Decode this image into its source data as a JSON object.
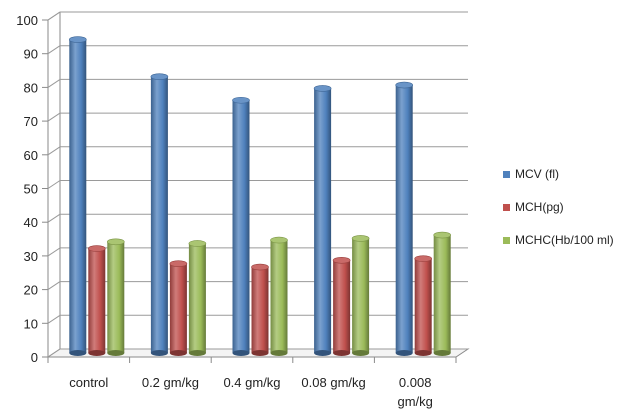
{
  "chart_data": {
    "type": "bar",
    "categories": [
      "control",
      "0.2 gm/kg",
      "0.4 gm/kg",
      "0.08 gm/kg",
      "0.008 gm/kg"
    ],
    "series": [
      {
        "name": "MCV (fl)",
        "color": "#4F81BD",
        "values": [
          93,
          82,
          75,
          78.5,
          79.5
        ]
      },
      {
        "name": "MCH(pg)",
        "color": "#C0504D",
        "values": [
          31,
          26.5,
          25.5,
          27.5,
          28
        ]
      },
      {
        "name": "MCHC(Hb/100 ml)",
        "color": "#9BBB59",
        "values": [
          33,
          32.5,
          33.5,
          34,
          35
        ]
      }
    ],
    "ylim": [
      0,
      100
    ],
    "yticks": [
      0,
      10,
      20,
      30,
      40,
      50,
      60,
      70,
      80,
      90,
      100
    ],
    "grid": true,
    "legend_position": "right",
    "style": "3d-cylinder"
  }
}
